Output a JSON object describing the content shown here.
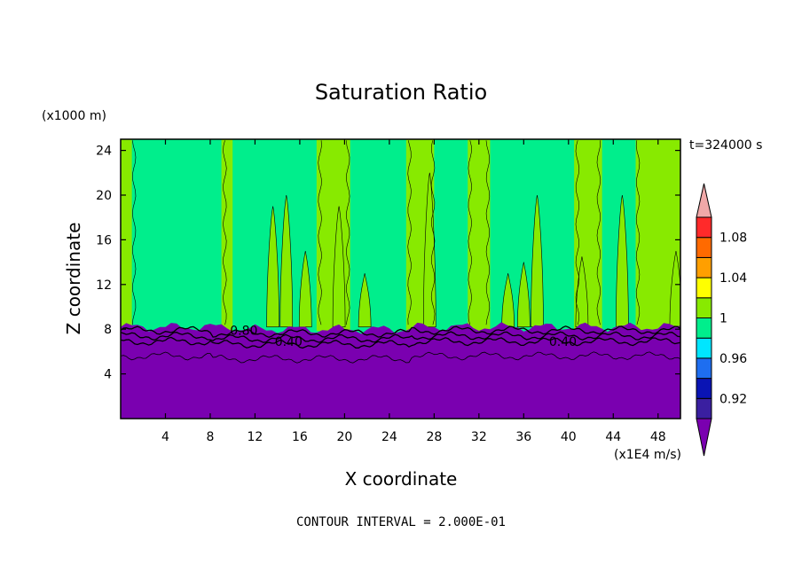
{
  "chart_data": {
    "type": "heatmap",
    "title": "Saturation Ratio",
    "xlabel": "X coordinate",
    "ylabel": "Z coordinate",
    "x_unit": "(x1E4 m/s)",
    "y_unit": "(x1000 m)",
    "time_label": "t=324000 s",
    "contour_interval_label": "CONTOUR INTERVAL = 2.000E-01",
    "xlim": [
      0,
      50
    ],
    "ylim": [
      0,
      25
    ],
    "x_ticks": [
      4,
      8,
      12,
      16,
      20,
      24,
      28,
      32,
      36,
      40,
      44,
      48
    ],
    "y_ticks": [
      4,
      8,
      12,
      16,
      20,
      24
    ],
    "colorbar": {
      "levels": [
        0.92,
        0.96,
        1,
        1.04,
        1.08
      ],
      "tick_labels": [
        "0.92",
        "0.96",
        "1",
        "1.04",
        "1.08"
      ],
      "colors": [
        "#7a00b0",
        "#3a1fa0",
        "#0a14b4",
        "#1e6ef0",
        "#00e6ff",
        "#00ee8c",
        "#88ea00",
        "#ffff00",
        "#ff9f00",
        "#ff6a00",
        "#ff2a2a",
        "#f0a8a8"
      ]
    },
    "contour_labels": [
      {
        "text": "0.80",
        "x": 11,
        "z": 7.9
      },
      {
        "text": "0.40",
        "x": 15,
        "z": 6.9
      },
      {
        "text": "0.40",
        "x": 39.5,
        "z": 6.9
      }
    ],
    "regions": [
      {
        "name": "subsaturated lower layer",
        "z_range": [
          0,
          8
        ],
        "value": "< 0.92",
        "color": "#7a00b0"
      },
      {
        "name": "saturated band",
        "x_ranges": [
          [
            0,
            1
          ],
          [
            9,
            10
          ],
          [
            17.5,
            20.5
          ],
          [
            25.5,
            28
          ],
          [
            31,
            33
          ],
          [
            40.5,
            43
          ],
          [
            46,
            50
          ]
        ],
        "value": "1 - 1.04",
        "color": "#88ea00"
      },
      {
        "name": "near-saturation",
        "value": "0.96 - 1",
        "color": "#00ee8c"
      }
    ],
    "grid": false,
    "legend": "colorbar right"
  }
}
